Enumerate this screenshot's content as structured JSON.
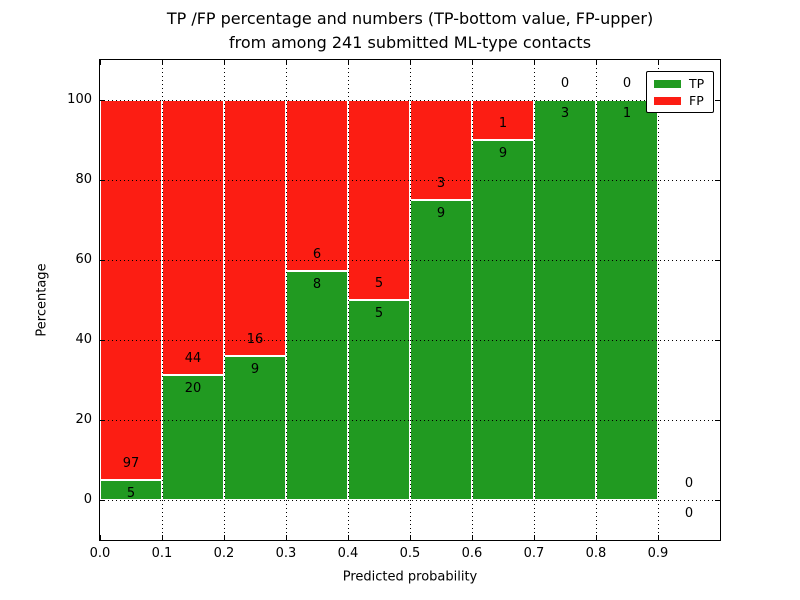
{
  "title": {
    "line1": "TP /FP percentage and numbers (TP-bottom value, FP-upper)",
    "line2": "from among 241 submitted ML-type contacts"
  },
  "axes": {
    "ylabel": "Percentage",
    "xlabel": "Predicted probability",
    "yticks": [
      "0",
      "20",
      "40",
      "60",
      "80",
      "100"
    ],
    "xticks": [
      "0.0",
      "0.1",
      "0.2",
      "0.3",
      "0.4",
      "0.5",
      "0.6",
      "0.7",
      "0.8",
      "0.9"
    ]
  },
  "legend": {
    "items": [
      {
        "label": "TP",
        "color": "#219a21"
      },
      {
        "label": "FP",
        "color": "#fc1d13"
      }
    ]
  },
  "colors": {
    "tp_green": "#219a21",
    "fp_red": "#fc1d13",
    "grid": "#000000",
    "background": "#ffffff"
  },
  "chart_data": {
    "type": "bar",
    "stacked": true,
    "normalized": "each bin scaled to 100%, annotated with raw counts (TP bottom, FP upper)",
    "title": "TP /FP percentage and numbers (TP-bottom value, FP-upper) from among 241 submitted ML-type contacts",
    "xlabel": "Predicted probability",
    "ylabel": "Percentage",
    "total_submitted": 241,
    "bin_width": 0.1,
    "bin_starts": [
      0.0,
      0.1,
      0.2,
      0.3,
      0.4,
      0.5,
      0.6,
      0.7,
      0.8,
      0.9
    ],
    "series": [
      {
        "name": "TP",
        "color": "#219a21",
        "counts": [
          5,
          20,
          9,
          8,
          5,
          9,
          9,
          3,
          1,
          0
        ]
      },
      {
        "name": "FP",
        "color": "#fc1d13",
        "counts": [
          97,
          44,
          16,
          6,
          5,
          3,
          1,
          0,
          0,
          0
        ]
      }
    ],
    "tp_percent_of_bin": [
      4.9,
      31.25,
      36.0,
      57.1,
      50.0,
      75.0,
      90.0,
      100.0,
      100.0,
      0.0
    ],
    "fp_percent_of_bin": [
      95.1,
      68.75,
      64.0,
      42.9,
      50.0,
      25.0,
      10.0,
      0.0,
      0.0,
      0.0
    ],
    "xlim": [
      0.0,
      1.0
    ],
    "ylim": [
      -10,
      110
    ],
    "yticks": [
      0,
      20,
      40,
      60,
      80,
      100
    ],
    "xticks": [
      0.0,
      0.1,
      0.2,
      0.3,
      0.4,
      0.5,
      0.6,
      0.7,
      0.8,
      0.9
    ],
    "grid": "dotted, both axes",
    "legend_position": "upper right"
  }
}
